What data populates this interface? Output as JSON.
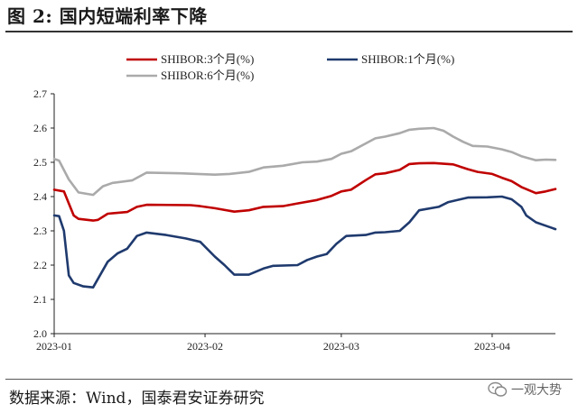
{
  "figure": {
    "title": "图 2: 国内短端利率下降",
    "source": "数据来源：Wind，国泰君安证券研究",
    "watermark": "一观大势"
  },
  "chart_data": {
    "type": "line",
    "title": "图 2: 国内短端利率下降",
    "xlabel": "",
    "ylabel": "",
    "ylim": [
      2.0,
      2.7
    ],
    "yticks": [
      2.0,
      2.1,
      2.2,
      2.3,
      2.4,
      2.5,
      2.6,
      2.7
    ],
    "ytick_labels": [
      "2.0",
      "2.1",
      "2.2",
      "2.3",
      "2.4",
      "2.5",
      "2.6",
      "2.7"
    ],
    "xlim": [
      "2023-01-01",
      "2023-04-14"
    ],
    "xticks": [
      "2023-01",
      "2023-02",
      "2023-03",
      "2023-04"
    ],
    "grid": false,
    "legend": "top",
    "series": [
      {
        "name": "SHIBOR:3个月(%)",
        "color": "#c00000",
        "points": [
          [
            "2023-01-01",
            2.42
          ],
          [
            "2023-01-03",
            2.415
          ],
          [
            "2023-01-04",
            2.38
          ],
          [
            "2023-01-05",
            2.345
          ],
          [
            "2023-01-06",
            2.335
          ],
          [
            "2023-01-09",
            2.33
          ],
          [
            "2023-01-10",
            2.332
          ],
          [
            "2023-01-12",
            2.35
          ],
          [
            "2023-01-16",
            2.355
          ],
          [
            "2023-01-18",
            2.37
          ],
          [
            "2023-01-20",
            2.376
          ],
          [
            "2023-01-29",
            2.375
          ],
          [
            "2023-01-31",
            2.372
          ],
          [
            "2023-02-03",
            2.366
          ],
          [
            "2023-02-07",
            2.356
          ],
          [
            "2023-02-10",
            2.36
          ],
          [
            "2023-02-13",
            2.37
          ],
          [
            "2023-02-17",
            2.372
          ],
          [
            "2023-02-20",
            2.38
          ],
          [
            "2023-02-24",
            2.39
          ],
          [
            "2023-02-27",
            2.402
          ],
          [
            "2023-03-01",
            2.415
          ],
          [
            "2023-03-03",
            2.42
          ],
          [
            "2023-03-06",
            2.448
          ],
          [
            "2023-03-08",
            2.465
          ],
          [
            "2023-03-10",
            2.468
          ],
          [
            "2023-03-13",
            2.478
          ],
          [
            "2023-03-15",
            2.495
          ],
          [
            "2023-03-17",
            2.497
          ],
          [
            "2023-03-20",
            2.498
          ],
          [
            "2023-03-24",
            2.494
          ],
          [
            "2023-03-27",
            2.48
          ],
          [
            "2023-03-29",
            2.472
          ],
          [
            "2023-04-01",
            2.466
          ],
          [
            "2023-04-03",
            2.455
          ],
          [
            "2023-04-05",
            2.445
          ],
          [
            "2023-04-07",
            2.428
          ],
          [
            "2023-04-10",
            2.41
          ],
          [
            "2023-04-12",
            2.415
          ],
          [
            "2023-04-14",
            2.422
          ]
        ]
      },
      {
        "name": "SHIBOR:1个月(%)",
        "color": "#1f3a6e",
        "points": [
          [
            "2023-01-01",
            2.345
          ],
          [
            "2023-01-02",
            2.343
          ],
          [
            "2023-01-03",
            2.3
          ],
          [
            "2023-01-04",
            2.17
          ],
          [
            "2023-01-05",
            2.148
          ],
          [
            "2023-01-07",
            2.138
          ],
          [
            "2023-01-09",
            2.135
          ],
          [
            "2023-01-10",
            2.16
          ],
          [
            "2023-01-12",
            2.21
          ],
          [
            "2023-01-14",
            2.234
          ],
          [
            "2023-01-16",
            2.248
          ],
          [
            "2023-01-18",
            2.285
          ],
          [
            "2023-01-20",
            2.295
          ],
          [
            "2023-01-24",
            2.288
          ],
          [
            "2023-01-28",
            2.278
          ],
          [
            "2023-01-31",
            2.268
          ],
          [
            "2023-02-03",
            2.225
          ],
          [
            "2023-02-05",
            2.2
          ],
          [
            "2023-02-07",
            2.172
          ],
          [
            "2023-02-10",
            2.172
          ],
          [
            "2023-02-13",
            2.19
          ],
          [
            "2023-02-15",
            2.198
          ],
          [
            "2023-02-20",
            2.2
          ],
          [
            "2023-02-22",
            2.215
          ],
          [
            "2023-02-24",
            2.225
          ],
          [
            "2023-02-26",
            2.232
          ],
          [
            "2023-02-28",
            2.262
          ],
          [
            "2023-03-02",
            2.285
          ],
          [
            "2023-03-06",
            2.288
          ],
          [
            "2023-03-08",
            2.295
          ],
          [
            "2023-03-10",
            2.296
          ],
          [
            "2023-03-13",
            2.3
          ],
          [
            "2023-03-15",
            2.325
          ],
          [
            "2023-03-17",
            2.36
          ],
          [
            "2023-03-21",
            2.37
          ],
          [
            "2023-03-23",
            2.384
          ],
          [
            "2023-03-27",
            2.397
          ],
          [
            "2023-03-31",
            2.398
          ],
          [
            "2023-04-03",
            2.4
          ],
          [
            "2023-04-05",
            2.392
          ],
          [
            "2023-04-07",
            2.37
          ],
          [
            "2023-04-08",
            2.345
          ],
          [
            "2023-04-10",
            2.325
          ],
          [
            "2023-04-12",
            2.315
          ],
          [
            "2023-04-13",
            2.31
          ],
          [
            "2023-04-14",
            2.305
          ]
        ]
      },
      {
        "name": "SHIBOR:6个月(%)",
        "color": "#aaaaaa",
        "points": [
          [
            "2023-01-01",
            2.51
          ],
          [
            "2023-01-02",
            2.505
          ],
          [
            "2023-01-04",
            2.45
          ],
          [
            "2023-01-06",
            2.412
          ],
          [
            "2023-01-09",
            2.405
          ],
          [
            "2023-01-11",
            2.43
          ],
          [
            "2023-01-13",
            2.44
          ],
          [
            "2023-01-17",
            2.447
          ],
          [
            "2023-01-20",
            2.47
          ],
          [
            "2023-01-27",
            2.468
          ],
          [
            "2023-02-03",
            2.464
          ],
          [
            "2023-02-06",
            2.466
          ],
          [
            "2023-02-10",
            2.472
          ],
          [
            "2023-02-13",
            2.485
          ],
          [
            "2023-02-17",
            2.49
          ],
          [
            "2023-02-21",
            2.5
          ],
          [
            "2023-02-24",
            2.502
          ],
          [
            "2023-02-27",
            2.51
          ],
          [
            "2023-03-01",
            2.525
          ],
          [
            "2023-03-03",
            2.532
          ],
          [
            "2023-03-06",
            2.555
          ],
          [
            "2023-03-08",
            2.57
          ],
          [
            "2023-03-10",
            2.575
          ],
          [
            "2023-03-13",
            2.585
          ],
          [
            "2023-03-15",
            2.595
          ],
          [
            "2023-03-17",
            2.598
          ],
          [
            "2023-03-20",
            2.6
          ],
          [
            "2023-03-22",
            2.592
          ],
          [
            "2023-03-24",
            2.575
          ],
          [
            "2023-03-26",
            2.56
          ],
          [
            "2023-03-28",
            2.548
          ],
          [
            "2023-03-31",
            2.546
          ],
          [
            "2023-04-03",
            2.538
          ],
          [
            "2023-04-05",
            2.53
          ],
          [
            "2023-04-07",
            2.518
          ],
          [
            "2023-04-10",
            2.506
          ],
          [
            "2023-04-12",
            2.508
          ],
          [
            "2023-04-14",
            2.507
          ]
        ]
      }
    ]
  }
}
